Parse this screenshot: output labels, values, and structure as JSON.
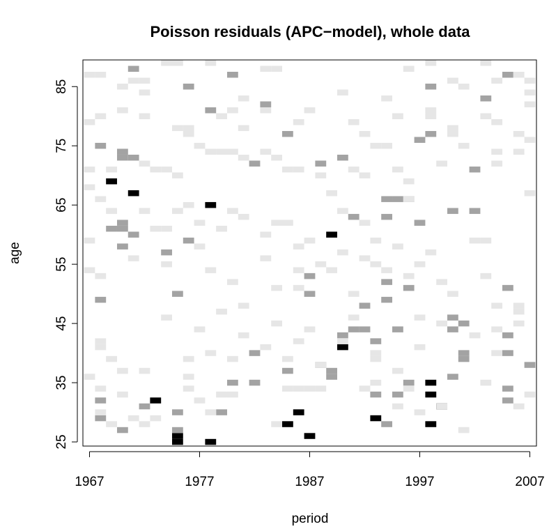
{
  "chart_data": {
    "type": "heatmap",
    "title": "Poisson residuals (APC−model), whole data",
    "x_label": "period",
    "y_label": "age",
    "xlim": [
      1966.4,
      2007.6
    ],
    "ylim": [
      24.3,
      89.5
    ],
    "xticks": [
      1967,
      1977,
      1987,
      1997,
      2007
    ],
    "yticks": [
      25,
      35,
      45,
      55,
      65,
      75,
      85
    ],
    "colors": [
      "#ffffff",
      "#e6e6e6",
      "#a3a3a3",
      "#000000"
    ],
    "x": [
      1969,
      1971,
      1978,
      1989,
      1990,
      1973,
      1975,
      1975,
      1978,
      1986,
      1985,
      1987,
      1993,
      1998,
      1998,
      1999,
      1998,
      1971,
      1980,
      1998,
      1976,
      1983,
      1978,
      2003,
      2005,
      1998,
      1985,
      1968,
      1970,
      1970,
      1971,
      1982,
      1988,
      1997,
      2002,
      1990,
      1994,
      1995,
      1996,
      1970,
      1969,
      1970,
      1971,
      1970,
      1974,
      1976,
      1991,
      1994,
      1997,
      2000,
      2002,
      1968,
      1975,
      1987,
      1987,
      1994,
      1994,
      1996,
      1992,
      1990,
      1991,
      1992,
      1993,
      1995,
      2000,
      2001,
      2000,
      2001,
      2001,
      2005,
      2005,
      2005,
      2007,
      1982,
      1988,
      1989,
      1989,
      1985,
      1980,
      1982,
      2000,
      1968,
      1972,
      1975,
      1979,
      1975,
      1968,
      1970,
      1993,
      1995,
      1996,
      2005,
      2005,
      1994,
      1967,
      1968,
      1970,
      1971,
      1972,
      1972,
      1974,
      1975,
      1978,
      1981,
      1983,
      1984,
      1990,
      1994,
      1996,
      1998,
      2000,
      2001,
      2003,
      2004,
      2006,
      2007,
      2007,
      2007,
      1967,
      1968,
      1970,
      1972,
      1975,
      1976,
      1976,
      1979,
      1980,
      1981,
      1983,
      1986,
      1987,
      1991,
      1992,
      1995,
      1998,
      1998,
      2000,
      2000,
      2003,
      2004,
      2006,
      2007,
      1967,
      1969,
      1972,
      1973,
      1974,
      1975,
      1977,
      1978,
      1979,
      1980,
      1981,
      1983,
      1984,
      1985,
      1986,
      1988,
      1991,
      1992,
      1993,
      1994,
      1995,
      1996,
      1999,
      2001,
      2004,
      2004,
      2006,
      1967,
      1968,
      1969,
      1972,
      1973,
      1974,
      1975,
      1976,
      1977,
      1979,
      1980,
      1981,
      1983,
      1984,
      1985,
      1986,
      1987,
      1989,
      1990,
      1992,
      1993,
      1995,
      1996,
      1998,
      2002,
      2003,
      2007,
      1967,
      1968,
      1971,
      1974,
      1977,
      1978,
      1979,
      1980,
      1981,
      1983,
      1984,
      1986,
      1986,
      1988,
      1989,
      1990,
      1991,
      1992,
      1993,
      1994,
      1996,
      1997,
      1999,
      2000,
      2003,
      2004,
      2006,
      2006,
      1967,
      1968,
      1968,
      1969,
      1970,
      1972,
      1974,
      1976,
      1977,
      1978,
      1980,
      1981,
      1983,
      1984,
      1985,
      1986,
      1987,
      1988,
      1990,
      1991,
      1993,
      1993,
      1995,
      1997,
      1997,
      1999,
      2002,
      2004,
      2004,
      2006,
      1967,
      1967,
      1968,
      1968,
      1969,
      1970,
      1971,
      1972,
      1973,
      1976,
      1976,
      1977,
      1978,
      1979,
      1980,
      1984,
      1985,
      1986,
      1987,
      1988,
      1992,
      1993,
      1995,
      1996,
      1997,
      1999,
      2001,
      2003,
      2006,
      2007
    ],
    "y": [
      69,
      67,
      65,
      60,
      41,
      32,
      26,
      25,
      25,
      30,
      28,
      26,
      29,
      35,
      33,
      31,
      28,
      88,
      87,
      85,
      85,
      82,
      81,
      83,
      87,
      77,
      77,
      75,
      74,
      73,
      73,
      72,
      72,
      76,
      71,
      73,
      66,
      66,
      66,
      61,
      61,
      62,
      60,
      58,
      57,
      59,
      63,
      63,
      62,
      64,
      64,
      49,
      50,
      53,
      50,
      52,
      49,
      51,
      48,
      43,
      44,
      44,
      42,
      44,
      46,
      45,
      44,
      39,
      40,
      43,
      40,
      51,
      38,
      40,
      38,
      37,
      36,
      37,
      35,
      35,
      36,
      32,
      31,
      30,
      30,
      27,
      29,
      27,
      33,
      33,
      35,
      34,
      32,
      28,
      87,
      87,
      85,
      86,
      86,
      84,
      89,
      89,
      89,
      83,
      88,
      88,
      84,
      83,
      88,
      89,
      86,
      85,
      89,
      86,
      87,
      86,
      84,
      82,
      79,
      80,
      81,
      80,
      78,
      78,
      77,
      80,
      81,
      78,
      81,
      79,
      81,
      79,
      77,
      80,
      81,
      80,
      78,
      77,
      80,
      79,
      77,
      76,
      71,
      71,
      72,
      71,
      71,
      70,
      75,
      74,
      74,
      74,
      73,
      74,
      73,
      71,
      71,
      70,
      71,
      70,
      75,
      75,
      71,
      69,
      72,
      75,
      74,
      72,
      74,
      68,
      66,
      64,
      64,
      61,
      61,
      64,
      65,
      62,
      61,
      64,
      63,
      60,
      62,
      62,
      58,
      59,
      67,
      64,
      62,
      59,
      58,
      66,
      57,
      59,
      59,
      67,
      59,
      53,
      56,
      55,
      58,
      54,
      47,
      52,
      48,
      56,
      51,
      51,
      54,
      55,
      54,
      57,
      50,
      56,
      55,
      54,
      53,
      55,
      52,
      50,
      53,
      48,
      48,
      47,
      54,
      42,
      41,
      39,
      37,
      37,
      46,
      39,
      44,
      40,
      39,
      43,
      41,
      45,
      39,
      42,
      44,
      38,
      42,
      46,
      39,
      40,
      37,
      41,
      46,
      45,
      43,
      40,
      44,
      45,
      36,
      36,
      34,
      30,
      28,
      33,
      29,
      28,
      29,
      34,
      36,
      32,
      30,
      33,
      33,
      28,
      34,
      34,
      34,
      34,
      34,
      35,
      31,
      34,
      30,
      31,
      27,
      35,
      31,
      33,
      36
    ],
    "values": [
      3,
      3,
      3,
      3,
      3,
      3,
      3,
      3,
      3,
      3,
      3,
      3,
      3,
      3,
      3,
      3,
      3,
      2,
      2,
      2,
      2,
      2,
      2,
      2,
      2,
      2,
      2,
      2,
      2,
      2,
      2,
      2,
      2,
      2,
      2,
      2,
      2,
      2,
      2,
      2,
      2,
      2,
      2,
      2,
      2,
      2,
      2,
      2,
      2,
      2,
      2,
      2,
      2,
      2,
      2,
      2,
      2,
      2,
      2,
      2,
      2,
      2,
      2,
      2,
      2,
      2,
      2,
      2,
      2,
      2,
      2,
      2,
      2,
      2,
      2,
      2,
      2,
      2,
      2,
      2,
      2,
      2,
      2,
      2,
      2,
      2,
      2,
      2,
      2,
      2,
      2,
      2,
      2,
      2,
      1,
      1,
      1,
      1,
      1,
      1,
      1,
      1,
      1,
      1,
      1,
      1,
      1,
      1,
      1,
      1,
      1,
      1,
      1,
      1,
      1,
      1,
      1,
      1,
      1,
      1,
      1,
      1,
      1,
      1,
      1,
      1,
      1,
      1,
      1,
      1,
      1,
      1,
      1,
      1,
      1,
      1,
      1,
      1,
      1,
      1,
      1,
      1,
      1,
      1,
      1,
      1,
      1,
      1,
      1,
      1,
      1,
      1,
      1,
      1,
      1,
      1,
      1,
      1,
      1,
      1,
      1,
      1,
      1,
      1,
      1,
      1,
      1,
      1,
      1,
      1,
      1,
      1,
      1,
      1,
      1,
      1,
      1,
      1,
      1,
      1,
      1,
      1,
      1,
      1,
      1,
      1,
      1,
      1,
      1,
      1,
      1,
      1,
      1,
      1,
      1,
      1,
      1,
      1,
      1,
      1,
      1,
      1,
      1,
      1,
      1,
      1,
      1,
      1,
      1,
      1,
      1,
      1,
      1,
      1,
      1,
      1,
      1,
      1,
      1,
      1,
      1,
      1,
      1,
      1,
      1,
      1,
      1,
      1,
      1,
      1,
      1,
      1,
      1,
      1,
      1,
      1,
      1,
      1,
      1,
      1,
      1,
      1,
      1,
      1,
      1,
      1,
      1,
      1,
      1,
      1,
      1,
      1,
      1,
      1,
      1,
      1,
      1,
      1,
      1,
      1,
      1,
      1,
      1,
      1,
      1,
      1,
      1,
      1,
      1,
      1,
      1,
      1,
      1,
      1,
      1,
      1,
      1,
      1,
      1,
      1,
      1,
      1,
      1,
      1
    ]
  }
}
